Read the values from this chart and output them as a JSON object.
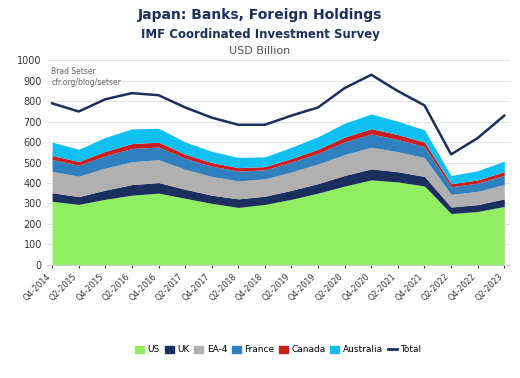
{
  "title": "Japan: Banks, Foreign Holdings",
  "subtitle1": "IMF Coordinated Investment Survey",
  "subtitle2": "USD Billion",
  "annotation": "Brad Setser\ncfr.org/blog/setser",
  "categories": [
    "Q4-2014",
    "Q2-2015",
    "Q4-2015",
    "Q2-2016",
    "Q4-2016",
    "Q2-2017",
    "Q4-2017",
    "Q2-2018",
    "Q4-2018",
    "Q2-2019",
    "Q4-2019",
    "Q2-2020",
    "Q4-2020",
    "Q2-2021",
    "Q4-2021",
    "Q2-2022",
    "Q4-2022",
    "Q2-2023"
  ],
  "US": [
    310,
    295,
    320,
    340,
    350,
    325,
    300,
    280,
    295,
    320,
    350,
    385,
    415,
    405,
    385,
    250,
    260,
    285
  ],
  "UK": [
    42,
    38,
    45,
    52,
    52,
    44,
    40,
    42,
    40,
    44,
    47,
    52,
    54,
    50,
    47,
    32,
    34,
    37
  ],
  "EA4": [
    105,
    100,
    108,
    112,
    112,
    98,
    92,
    88,
    85,
    90,
    96,
    102,
    106,
    98,
    92,
    62,
    65,
    70
  ],
  "France": [
    58,
    54,
    60,
    65,
    62,
    54,
    50,
    48,
    44,
    48,
    52,
    62,
    65,
    60,
    54,
    37,
    40,
    45
  ],
  "Canada": [
    20,
    18,
    22,
    24,
    24,
    20,
    18,
    17,
    16,
    18,
    20,
    24,
    26,
    24,
    22,
    15,
    16,
    18
  ],
  "Australia": [
    65,
    60,
    68,
    72,
    68,
    60,
    55,
    50,
    48,
    55,
    62,
    68,
    72,
    65,
    60,
    40,
    45,
    52
  ],
  "Total": [
    790,
    750,
    810,
    840,
    830,
    770,
    720,
    685,
    685,
    730,
    770,
    865,
    930,
    850,
    780,
    540,
    620,
    730
  ],
  "colors": {
    "US": "#90ee60",
    "UK": "#1a2f5e",
    "EA4": "#b0b0b0",
    "France": "#3080c0",
    "Canada": "#c82020",
    "Australia": "#10c0f0",
    "Total": "#1a2f5e"
  },
  "ylim": [
    0,
    1000
  ],
  "yticks": [
    0,
    100,
    200,
    300,
    400,
    500,
    600,
    700,
    800,
    900,
    1000
  ],
  "title_color": "#1a2f5e",
  "subtitle_color": "#1a2f5e",
  "subtitle2_color": "#505050"
}
